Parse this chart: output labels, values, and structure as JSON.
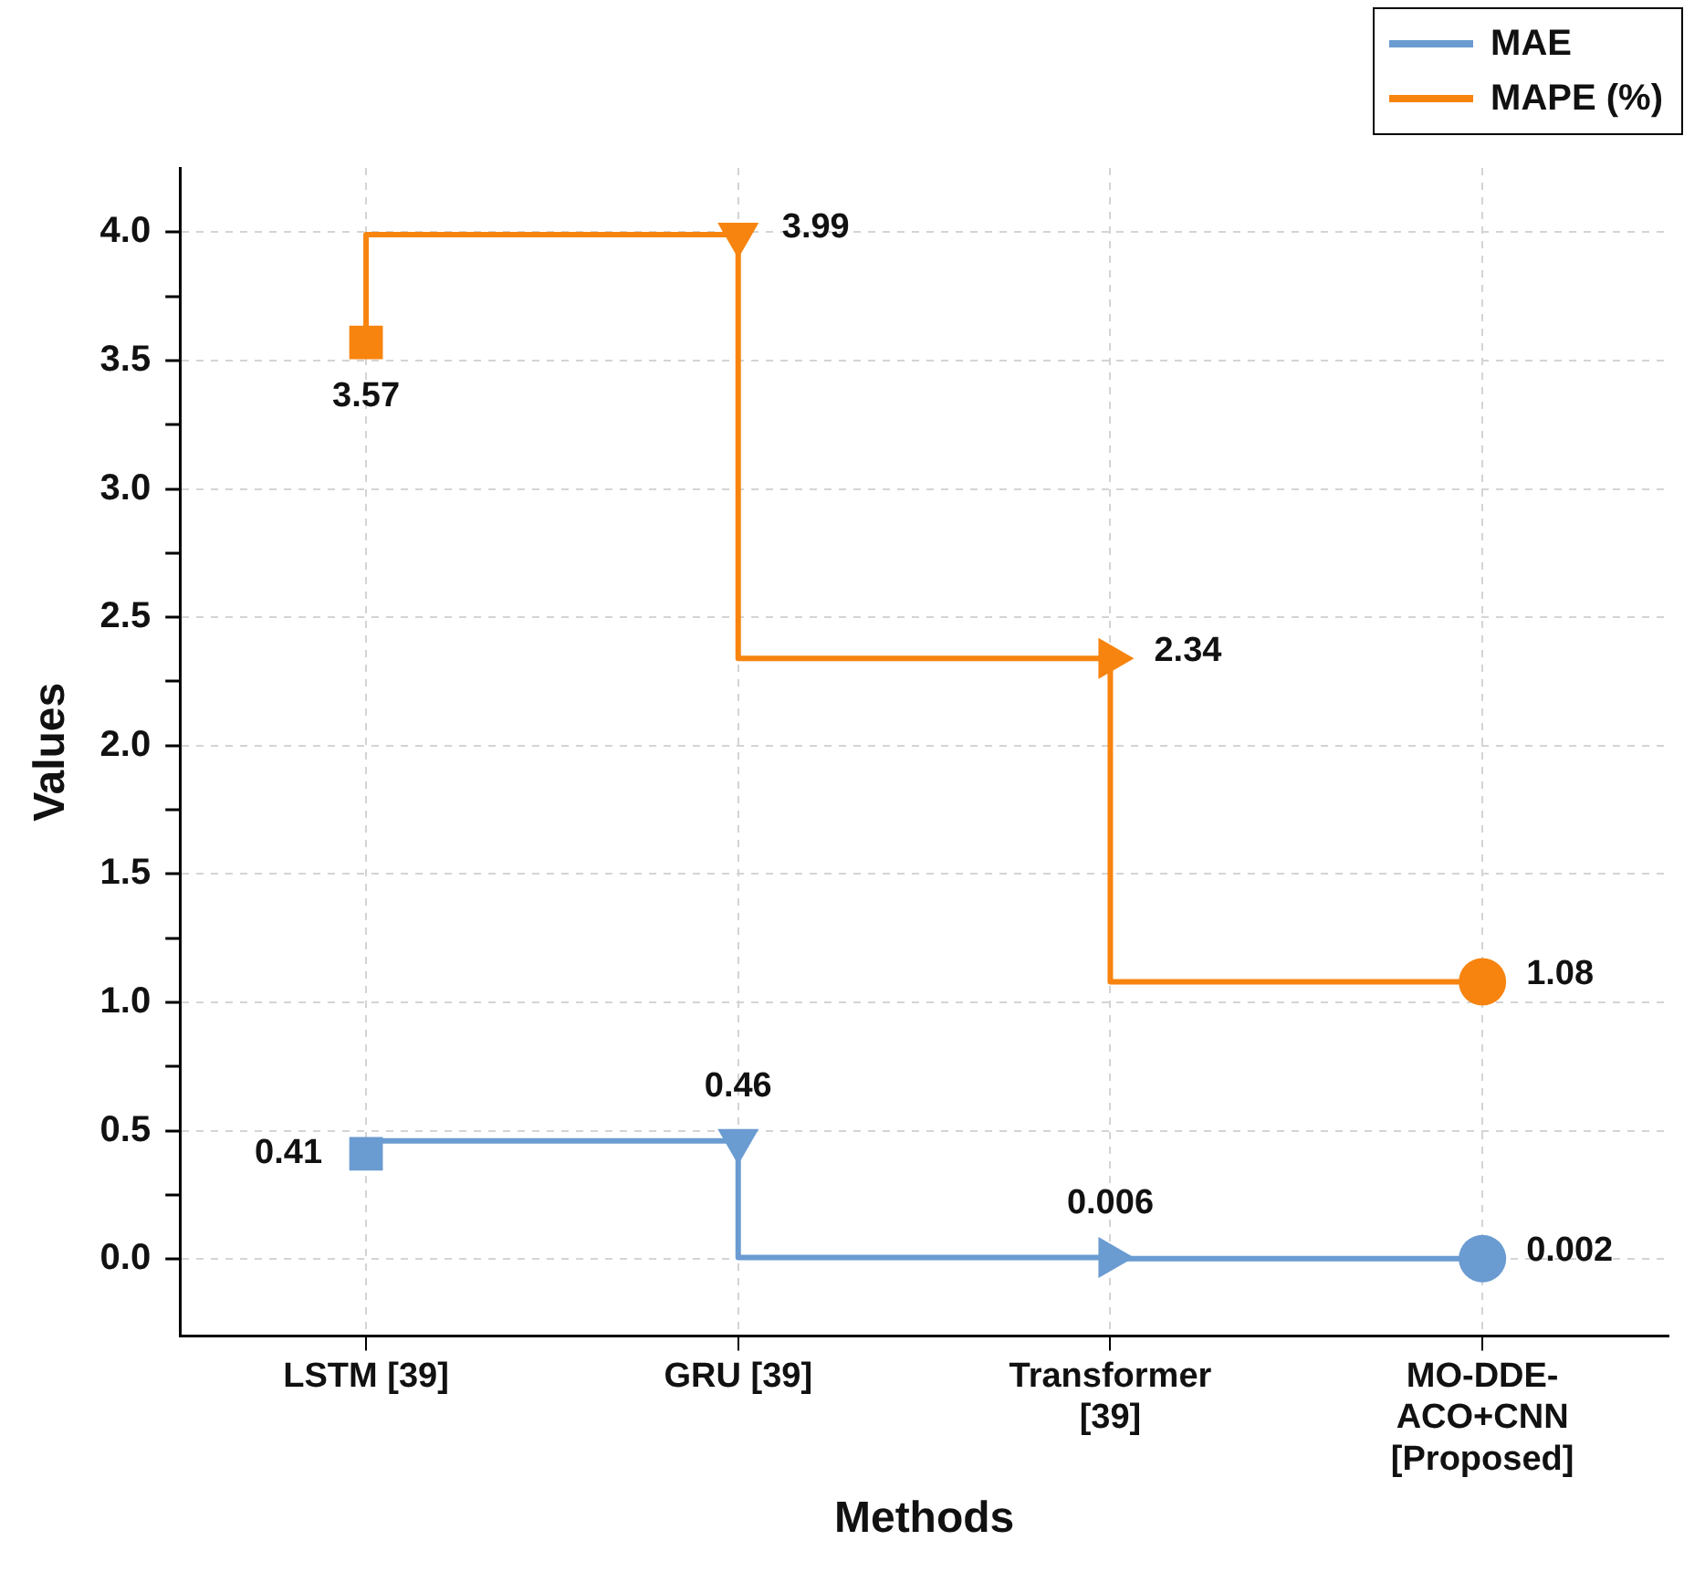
{
  "chart_data": {
    "type": "step",
    "xlabel": "Methods",
    "ylabel": "Values",
    "categories": [
      "LSTM [39]",
      "GRU [39]",
      "Transformer [39]",
      "MO-DDE-ACO+CNN [Proposed]"
    ],
    "series": [
      {
        "name": "MAE",
        "color": "#6a9bd1",
        "values": [
          0.41,
          0.46,
          0.006,
          0.002
        ],
        "marker": [
          "square",
          "triangle-down",
          "triangle-right",
          "hexagon"
        ]
      },
      {
        "name": "MAPE (%)",
        "color": "#f7840f",
        "values": [
          3.57,
          3.99,
          2.34,
          1.08
        ],
        "marker": [
          "square",
          "triangle-down",
          "triangle-right",
          "hexagon"
        ]
      }
    ],
    "ylim": [
      -0.3,
      4.25
    ],
    "yticks": [
      {
        "value": 0,
        "label": "0.0"
      },
      {
        "value": 0.25,
        "label": null
      },
      0.5,
      {
        "value": 0.75,
        "label": null
      },
      {
        "value": 1,
        "label": "1.0"
      },
      {
        "value": 1.25,
        "label": null
      },
      1.5,
      {
        "value": 1.75,
        "label": null
      },
      {
        "value": 2,
        "label": "2.0"
      },
      {
        "value": 2.25,
        "label": null
      },
      2.5,
      {
        "value": 2.75,
        "label": null
      },
      {
        "value": 3,
        "label": "3.0"
      },
      {
        "value": 3.25,
        "label": null
      },
      3.5,
      {
        "value": 3.75,
        "label": null
      },
      {
        "value": 4,
        "label": "4.0"
      }
    ],
    "grid": true,
    "legend": "top right",
    "data_labels": true,
    "line_style": "solid"
  }
}
